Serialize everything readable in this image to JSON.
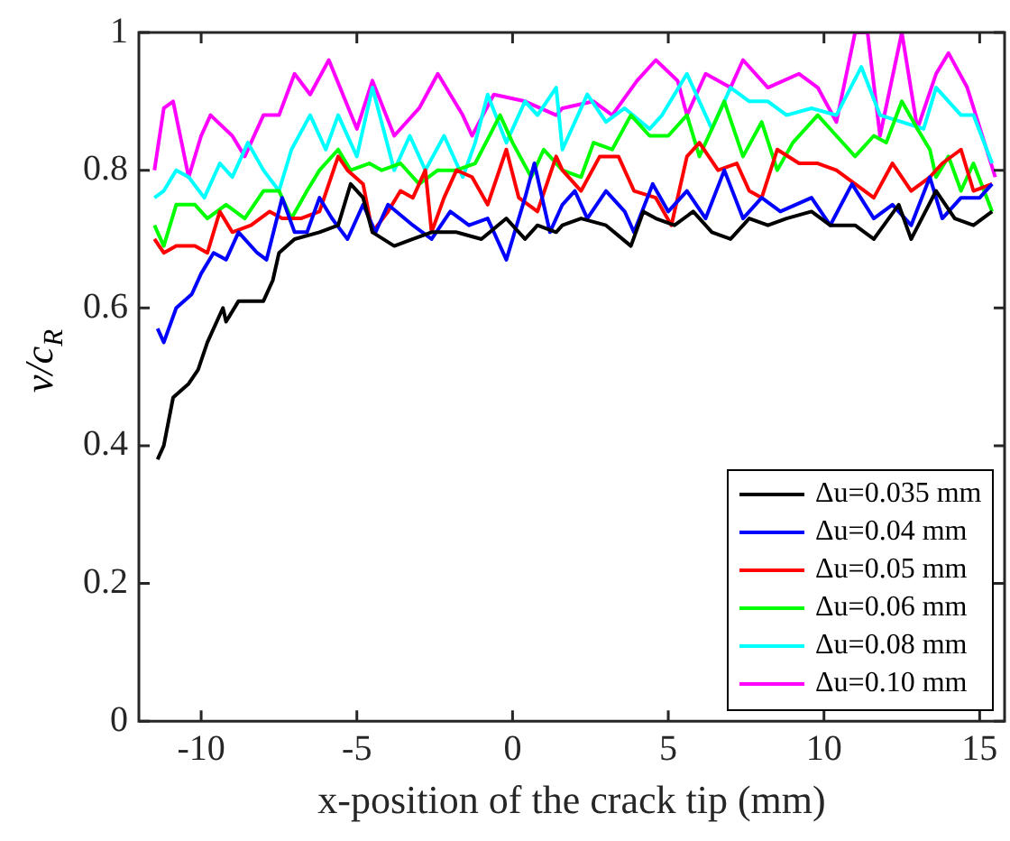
{
  "chart_data": {
    "type": "line",
    "xlabel": "x-position of the crack tip (mm)",
    "ylabel": "v/c$_{R}$",
    "xlim": [
      -12,
      15.8
    ],
    "ylim": [
      0,
      1
    ],
    "xticks": [
      -10,
      -5,
      0,
      5,
      10,
      15
    ],
    "yticks": [
      0,
      0.2,
      0.4,
      0.6,
      0.8,
      1
    ],
    "grid": false,
    "legend": "bottom right",
    "marker": "none",
    "line_style": "solid",
    "series": [
      {
        "name": "Δu=0.035 mm",
        "color": "#000000",
        "x": [
          -11.4,
          -11.2,
          -10.9,
          -10.4,
          -10.1,
          -9.8,
          -9.3,
          -9.2,
          -8.8,
          -8.0,
          -7.7,
          -7.5,
          -7.0,
          -6.2,
          -5.6,
          -5.2,
          -4.8,
          -4.5,
          -3.8,
          -3.2,
          -2.6,
          -1.8,
          -1.0,
          -0.2,
          0.4,
          0.8,
          1.4,
          1.6,
          2.2,
          3.0,
          3.8,
          4.2,
          4.6,
          5.2,
          5.8,
          6.4,
          7.0,
          7.6,
          8.2,
          8.8,
          9.6,
          10.2,
          11.0,
          11.6,
          12.4,
          12.8,
          13.6,
          14.2,
          14.8,
          15.4
        ],
        "values": [
          0.38,
          0.4,
          0.47,
          0.49,
          0.51,
          0.55,
          0.6,
          0.58,
          0.61,
          0.61,
          0.64,
          0.68,
          0.7,
          0.71,
          0.72,
          0.78,
          0.76,
          0.71,
          0.69,
          0.7,
          0.71,
          0.71,
          0.7,
          0.73,
          0.7,
          0.72,
          0.71,
          0.72,
          0.73,
          0.72,
          0.69,
          0.74,
          0.73,
          0.72,
          0.74,
          0.71,
          0.7,
          0.73,
          0.72,
          0.73,
          0.74,
          0.72,
          0.72,
          0.7,
          0.75,
          0.7,
          0.77,
          0.73,
          0.72,
          0.74
        ]
      },
      {
        "name": "Δu=0.04 mm",
        "color": "#0000ff",
        "x": [
          -11.4,
          -11.2,
          -10.8,
          -10.3,
          -10.0,
          -9.6,
          -9.2,
          -8.8,
          -8.2,
          -7.9,
          -7.4,
          -7.0,
          -6.6,
          -6.2,
          -5.8,
          -5.3,
          -4.8,
          -4.4,
          -4.0,
          -3.2,
          -2.6,
          -2.0,
          -1.4,
          -0.8,
          -0.2,
          0.4,
          0.7,
          1.2,
          1.6,
          2.0,
          2.4,
          3.0,
          3.6,
          3.9,
          4.5,
          5.0,
          5.6,
          6.2,
          6.8,
          7.4,
          8.0,
          8.6,
          9.6,
          10.2,
          10.9,
          11.6,
          12.2,
          12.8,
          13.4,
          13.8,
          14.4,
          15.0,
          15.4
        ],
        "values": [
          0.57,
          0.55,
          0.6,
          0.62,
          0.65,
          0.68,
          0.67,
          0.71,
          0.68,
          0.67,
          0.76,
          0.71,
          0.71,
          0.76,
          0.73,
          0.7,
          0.75,
          0.71,
          0.75,
          0.72,
          0.7,
          0.74,
          0.72,
          0.73,
          0.67,
          0.76,
          0.81,
          0.71,
          0.75,
          0.77,
          0.73,
          0.77,
          0.74,
          0.71,
          0.78,
          0.74,
          0.77,
          0.73,
          0.8,
          0.73,
          0.76,
          0.74,
          0.76,
          0.72,
          0.78,
          0.73,
          0.75,
          0.72,
          0.79,
          0.73,
          0.76,
          0.76,
          0.78
        ]
      },
      {
        "name": "Δu=0.05 mm",
        "color": "#ff0000",
        "x": [
          -11.5,
          -11.2,
          -10.8,
          -10.2,
          -9.8,
          -9.4,
          -9.0,
          -8.4,
          -7.8,
          -7.4,
          -6.8,
          -6.2,
          -5.6,
          -5.3,
          -4.8,
          -4.5,
          -4.0,
          -3.6,
          -3.2,
          -2.8,
          -2.6,
          -2.2,
          -1.8,
          -1.3,
          -0.8,
          -0.2,
          0.2,
          0.8,
          1.4,
          1.6,
          2.2,
          2.8,
          3.4,
          3.9,
          4.6,
          5.1,
          5.6,
          6.0,
          6.6,
          7.2,
          7.6,
          8.0,
          8.5,
          9.2,
          9.8,
          10.4,
          11.0,
          11.6,
          12.2,
          12.8,
          13.4,
          13.8,
          14.4,
          14.8,
          15.4
        ],
        "values": [
          0.7,
          0.68,
          0.69,
          0.69,
          0.68,
          0.74,
          0.71,
          0.72,
          0.74,
          0.73,
          0.73,
          0.74,
          0.82,
          0.8,
          0.78,
          0.71,
          0.74,
          0.77,
          0.76,
          0.8,
          0.71,
          0.76,
          0.8,
          0.79,
          0.75,
          0.83,
          0.76,
          0.74,
          0.82,
          0.8,
          0.77,
          0.82,
          0.82,
          0.77,
          0.76,
          0.72,
          0.82,
          0.84,
          0.8,
          0.81,
          0.77,
          0.76,
          0.83,
          0.81,
          0.81,
          0.8,
          0.78,
          0.76,
          0.81,
          0.77,
          0.79,
          0.81,
          0.83,
          0.77,
          0.78
        ]
      },
      {
        "name": "Δu=0.06 mm",
        "color": "#00ff00",
        "x": [
          -11.5,
          -11.2,
          -10.8,
          -10.2,
          -9.8,
          -9.2,
          -8.6,
          -8.0,
          -7.5,
          -7.1,
          -6.6,
          -6.2,
          -5.6,
          -5.2,
          -4.6,
          -4.2,
          -3.6,
          -3.0,
          -2.4,
          -1.8,
          -1.2,
          -0.4,
          0.0,
          0.6,
          1.0,
          1.6,
          2.2,
          2.6,
          3.2,
          3.8,
          4.4,
          5.0,
          5.6,
          6.0,
          6.8,
          7.4,
          8.0,
          8.5,
          9.0,
          9.8,
          10.4,
          11.0,
          11.6,
          12.0,
          12.5,
          13.0,
          13.4,
          13.6,
          14.0,
          14.4,
          14.8,
          15.4
        ],
        "values": [
          0.72,
          0.69,
          0.75,
          0.75,
          0.73,
          0.75,
          0.73,
          0.77,
          0.77,
          0.73,
          0.77,
          0.8,
          0.83,
          0.8,
          0.81,
          0.8,
          0.81,
          0.78,
          0.8,
          0.8,
          0.81,
          0.88,
          0.84,
          0.79,
          0.83,
          0.8,
          0.79,
          0.84,
          0.83,
          0.88,
          0.85,
          0.85,
          0.88,
          0.82,
          0.9,
          0.82,
          0.87,
          0.8,
          0.84,
          0.88,
          0.85,
          0.82,
          0.85,
          0.84,
          0.9,
          0.86,
          0.83,
          0.79,
          0.82,
          0.77,
          0.81,
          0.74
        ]
      },
      {
        "name": "Δu=0.08 mm",
        "color": "#00ffff",
        "x": [
          -11.5,
          -11.2,
          -10.8,
          -10.4,
          -9.9,
          -9.4,
          -9.0,
          -8.5,
          -8.0,
          -7.5,
          -7.1,
          -6.5,
          -6.0,
          -5.6,
          -5.0,
          -4.5,
          -3.8,
          -3.3,
          -2.8,
          -2.2,
          -1.6,
          -1.2,
          -0.8,
          -0.2,
          0.4,
          0.8,
          1.4,
          1.6,
          2.4,
          3.0,
          3.6,
          4.4,
          4.8,
          5.6,
          6.4,
          7.0,
          7.6,
          8.2,
          8.8,
          9.6,
          10.4,
          11.2,
          11.8,
          12.5,
          13.2,
          13.6,
          14.4,
          14.8,
          15.4
        ],
        "values": [
          0.76,
          0.77,
          0.8,
          0.79,
          0.76,
          0.81,
          0.79,
          0.84,
          0.8,
          0.77,
          0.83,
          0.88,
          0.83,
          0.88,
          0.82,
          0.92,
          0.8,
          0.85,
          0.8,
          0.85,
          0.79,
          0.84,
          0.91,
          0.84,
          0.9,
          0.88,
          0.92,
          0.83,
          0.91,
          0.87,
          0.89,
          0.86,
          0.88,
          0.94,
          0.86,
          0.92,
          0.9,
          0.9,
          0.88,
          0.89,
          0.88,
          0.95,
          0.88,
          0.87,
          0.86,
          0.92,
          0.88,
          0.88,
          0.81
        ]
      },
      {
        "name": "Δu=0.10 mm",
        "color": "#ff00ff",
        "x": [
          -11.5,
          -11.2,
          -10.9,
          -10.4,
          -10.0,
          -9.7,
          -9.0,
          -8.6,
          -8.0,
          -7.5,
          -7.0,
          -6.5,
          -5.9,
          -5.0,
          -4.5,
          -3.8,
          -3.0,
          -2.4,
          -1.6,
          -1.3,
          -0.6,
          0.4,
          1.4,
          1.6,
          2.6,
          3.2,
          4.0,
          4.6,
          5.3,
          5.6,
          6.2,
          7.0,
          7.4,
          8.2,
          9.2,
          9.8,
          10.4,
          11.0,
          11.4,
          11.8,
          12.5,
          13.0,
          13.6,
          14.0,
          14.6,
          15.5
        ],
        "values": [
          0.8,
          0.89,
          0.9,
          0.79,
          0.85,
          0.88,
          0.85,
          0.82,
          0.88,
          0.88,
          0.94,
          0.91,
          0.96,
          0.86,
          0.93,
          0.85,
          0.89,
          0.94,
          0.88,
          0.85,
          0.91,
          0.9,
          0.88,
          0.89,
          0.9,
          0.88,
          0.93,
          0.96,
          0.93,
          0.88,
          0.94,
          0.92,
          0.96,
          0.92,
          0.94,
          0.92,
          0.87,
          1.0,
          1.0,
          0.85,
          1.0,
          0.86,
          0.94,
          0.97,
          0.92,
          0.79
        ]
      }
    ]
  }
}
